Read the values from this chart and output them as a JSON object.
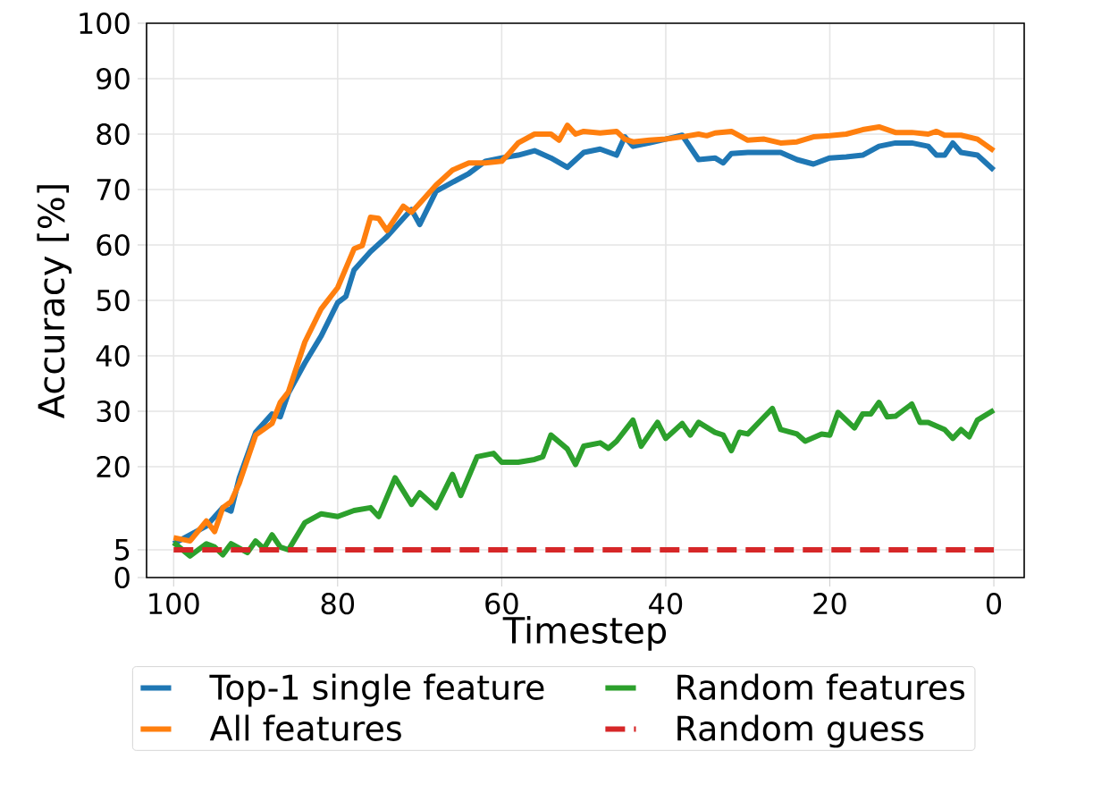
{
  "chart_data": {
    "type": "line",
    "xlabel": "Timestep",
    "ylabel": "Accuracy [%]",
    "xlim": [
      103.3,
      -3.7
    ],
    "xticks": [
      100,
      80,
      60,
      40,
      20,
      0
    ],
    "ylim": [
      0,
      100
    ],
    "yticks": [
      0,
      5,
      20,
      30,
      40,
      50,
      60,
      70,
      80,
      90,
      100
    ],
    "grid": true,
    "legend": "bottom",
    "series": [
      {
        "name": "Top-1 single feature",
        "color": "#1f77b4",
        "x": [
          100,
          98,
          96,
          94,
          93,
          92,
          90,
          88,
          87,
          86,
          84,
          82,
          80,
          79,
          78,
          76,
          74,
          72,
          71,
          70,
          68,
          66,
          64,
          62,
          60,
          58,
          56,
          54,
          52,
          50,
          48,
          46,
          45,
          44,
          42,
          40,
          38,
          36,
          34,
          33,
          32,
          30,
          28,
          26,
          24,
          22,
          20,
          18,
          16,
          14,
          12,
          10,
          8,
          7,
          6,
          5,
          4,
          2,
          0
        ],
        "values": [
          6.1,
          7.7,
          9.3,
          12.6,
          12,
          18,
          26.2,
          29.5,
          29,
          33.3,
          38.7,
          43.6,
          49.6,
          50.7,
          55.5,
          58.8,
          61.5,
          64.8,
          66.4,
          63.7,
          69.7,
          71.3,
          72.9,
          75.1,
          75.7,
          76.2,
          77,
          75.7,
          74,
          76.7,
          77.3,
          76.2,
          79.5,
          77.8,
          78.4,
          79.1,
          79.8,
          75.4,
          75.7,
          74.8,
          76.5,
          76.7,
          76.7,
          76.7,
          75.4,
          74.6,
          75.7,
          75.9,
          76.2,
          77.8,
          78.4,
          78.4,
          77.8,
          76.2,
          76.2,
          78.4,
          76.7,
          76.2,
          73.5
        ]
      },
      {
        "name": "All features",
        "color": "#ff7f0e",
        "x": [
          100,
          98,
          96,
          95,
          94,
          93,
          92,
          90,
          88,
          87,
          86,
          84,
          82,
          80,
          78,
          77,
          76,
          75,
          74,
          72,
          71,
          70,
          68,
          66,
          64,
          62,
          60,
          59,
          58,
          56,
          54,
          53,
          52,
          51,
          50,
          48,
          46,
          45,
          44,
          42,
          40,
          38,
          36,
          35,
          34,
          32,
          30,
          28,
          26,
          24,
          22,
          20,
          18,
          16,
          14,
          12,
          10,
          8,
          7,
          6,
          4,
          2,
          0
        ],
        "values": [
          7.2,
          6.6,
          10.2,
          8.3,
          12.6,
          13.7,
          17,
          25.7,
          27.8,
          31.6,
          33.5,
          42.5,
          48.5,
          52.3,
          59.3,
          59.9,
          65,
          64.8,
          62.6,
          67,
          65.9,
          67.5,
          70.8,
          73.5,
          74.8,
          74.8,
          75.1,
          76.7,
          78.4,
          80,
          80,
          78.9,
          81.6,
          80,
          80.5,
          80.2,
          80.5,
          79.1,
          78.6,
          78.9,
          79.1,
          79.5,
          80,
          79.7,
          80.2,
          80.5,
          78.9,
          79.1,
          78.4,
          78.6,
          79.5,
          79.7,
          80,
          80.8,
          81.3,
          80.3,
          80.3,
          80,
          80.5,
          79.8,
          79.8,
          79.1,
          77
        ]
      },
      {
        "name": "Random features",
        "color": "#2ca02c",
        "x": [
          100,
          98,
          96,
          95,
          94,
          93,
          91,
          90,
          89,
          88,
          87,
          86,
          84,
          82,
          80,
          78,
          76,
          75,
          73,
          71,
          70,
          68,
          66,
          65,
          63,
          61,
          60,
          58,
          56,
          55,
          54,
          52,
          51,
          50,
          48,
          47,
          46,
          44,
          43,
          41,
          40,
          38,
          37,
          36,
          34,
          33,
          32,
          31,
          30,
          28,
          27,
          26,
          24,
          23,
          21,
          20,
          19,
          17,
          16,
          15,
          14,
          13,
          12,
          10,
          9,
          8,
          6,
          5,
          4,
          3,
          2,
          0
        ],
        "values": [
          6.3,
          3.9,
          6.1,
          5.5,
          4.1,
          6.1,
          4.5,
          6.6,
          5.2,
          7.7,
          5.5,
          5,
          9.9,
          11.5,
          11,
          12.1,
          12.6,
          11,
          18,
          13.2,
          15.3,
          12.6,
          18.6,
          14.8,
          21.8,
          22.4,
          20.8,
          20.8,
          21.3,
          21.8,
          25.7,
          23.2,
          20.4,
          23.7,
          24.3,
          23.3,
          24.6,
          28.4,
          23.7,
          28,
          25.1,
          27.8,
          25.7,
          28,
          26.2,
          25.7,
          22.9,
          26.2,
          25.9,
          29,
          30.5,
          26.7,
          25.9,
          24.6,
          25.9,
          25.7,
          29.8,
          27,
          29.5,
          29.5,
          31.6,
          29,
          29.1,
          31.3,
          28,
          28,
          26.7,
          25.1,
          26.7,
          25.4,
          28.4,
          30.2
        ]
      },
      {
        "name": "Random guess",
        "color": "#d62728",
        "line_style": "dashed",
        "x": [
          100,
          0
        ],
        "values": [
          5,
          5
        ]
      }
    ]
  }
}
